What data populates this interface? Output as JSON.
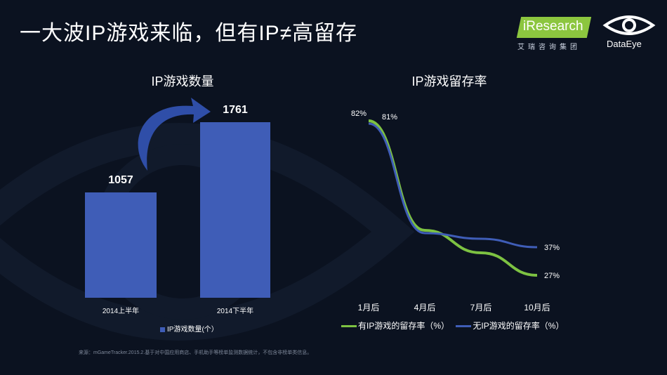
{
  "slide": {
    "title": "一大波IP游戏来临，但有IP≠高留存",
    "source_note": "来源：mGameTracker.2015.2.基于对中国应用商店、手机助手等榜单监测数据统计，不包含非榜单类信息。"
  },
  "logos": {
    "iresearch_name": "iResearch",
    "iresearch_sub": "艾瑞咨询集团",
    "dataeye_name": "DataEye"
  },
  "colors": {
    "background": "#0b1220",
    "bar": "#3f5db7",
    "line_with_ip": "#7dc242",
    "line_without_ip": "#3f5db7"
  },
  "chart_data": [
    {
      "type": "bar",
      "title": "IP游戏数量",
      "categories": [
        "2014上半年",
        "2014下半年"
      ],
      "values": [
        1057,
        1761
      ],
      "data_labels": [
        "1057",
        "1761"
      ],
      "series": [
        {
          "name": "IP游戏数量(个）",
          "values": [
            1057,
            1761
          ]
        }
      ],
      "ylim": [
        0,
        1900
      ],
      "legend_position": "bottom",
      "annotation": "curved-arrow-increase"
    },
    {
      "type": "line",
      "title": "IP游戏留存率",
      "categories": [
        "1月后",
        "4月后",
        "7月后",
        "10月后"
      ],
      "series": [
        {
          "name": "有IP游戏的留存率（%）",
          "values": [
            82,
            43,
            35,
            27
          ],
          "start_label": "82%",
          "end_label": "27%"
        },
        {
          "name": "无IP游戏的留存率（%）",
          "values": [
            81,
            42,
            40,
            37
          ],
          "start_label": "81%",
          "end_label": "37%"
        }
      ],
      "ylim": [
        20,
        90
      ],
      "grid": false,
      "legend_position": "bottom"
    }
  ]
}
